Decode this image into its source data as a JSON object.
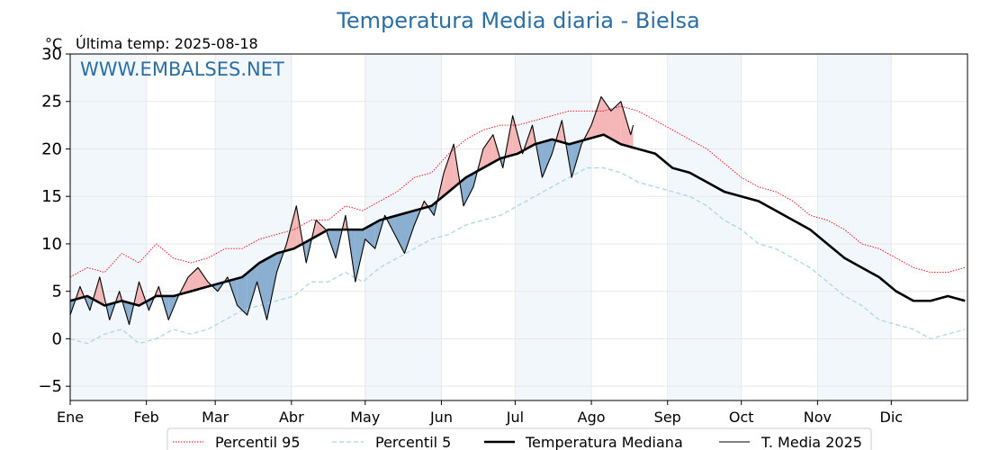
{
  "chart_data": {
    "type": "line",
    "title": "Temperatura Media diaria - Bielsa",
    "unit_label": "°C",
    "last_temp_label": "Última temp: 2025-08-18",
    "watermark": "WWW.EMBALSES.NET",
    "ylim": [
      -6.5,
      30
    ],
    "y_ticks": [
      -5,
      0,
      5,
      10,
      15,
      20,
      25,
      30
    ],
    "x_range_days": [
      1,
      366
    ],
    "month_labels": [
      "Ene",
      "Feb",
      "Mar",
      "Abr",
      "May",
      "Jun",
      "Jul",
      "Ago",
      "Sep",
      "Oct",
      "Nov",
      "Dic"
    ],
    "month_start_days": [
      1,
      32,
      60,
      91,
      121,
      152,
      182,
      213,
      244,
      274,
      305,
      335
    ],
    "shaded_months": [
      "Ene",
      "Mar",
      "May",
      "Jul",
      "Sep",
      "Nov"
    ],
    "legend_position": "bottom",
    "series": [
      {
        "name": "Percentil 95",
        "color": "#e8000b",
        "style": "dotted",
        "x": [
          1,
          8,
          15,
          22,
          29,
          36,
          43,
          50,
          57,
          64,
          71,
          78,
          85,
          92,
          99,
          106,
          113,
          120,
          127,
          134,
          141,
          148,
          155,
          162,
          169,
          176,
          183,
          190,
          197,
          204,
          211,
          218,
          225,
          232,
          239,
          246,
          253,
          260,
          267,
          274,
          281,
          288,
          295,
          302,
          309,
          316,
          323,
          330,
          337,
          344,
          351,
          358,
          365
        ],
        "values": [
          6.5,
          7.5,
          7.0,
          9.0,
          8.0,
          10.0,
          8.5,
          8.0,
          8.5,
          9.5,
          9.5,
          10.5,
          11.0,
          11.5,
          12.5,
          12.5,
          14.0,
          13.5,
          14.5,
          15.5,
          17.0,
          17.5,
          19.5,
          21.0,
          22.0,
          22.5,
          22.5,
          23.0,
          23.5,
          24.0,
          24.0,
          24.0,
          24.5,
          24.0,
          23.0,
          22.0,
          21.0,
          20.0,
          18.5,
          17.0,
          16.0,
          15.5,
          14.5,
          13.0,
          12.5,
          11.5,
          10.0,
          9.5,
          8.5,
          7.5,
          7.0,
          7.0,
          7.5
        ]
      },
      {
        "name": "Percentil 5",
        "color": "#a6d4e2",
        "style": "dashed",
        "x": [
          1,
          8,
          15,
          22,
          29,
          36,
          43,
          50,
          57,
          64,
          71,
          78,
          85,
          92,
          99,
          106,
          113,
          120,
          127,
          134,
          141,
          148,
          155,
          162,
          169,
          176,
          183,
          190,
          197,
          204,
          211,
          218,
          225,
          232,
          239,
          246,
          253,
          260,
          267,
          274,
          281,
          288,
          295,
          302,
          309,
          316,
          323,
          330,
          337,
          344,
          351,
          358,
          365
        ],
        "values": [
          0.0,
          -0.5,
          0.5,
          1.0,
          -0.5,
          0.0,
          1.0,
          0.5,
          1.0,
          2.0,
          3.0,
          3.5,
          4.0,
          4.5,
          6.0,
          6.0,
          7.0,
          6.0,
          7.5,
          8.5,
          9.5,
          10.5,
          11.0,
          12.0,
          12.5,
          13.0,
          14.0,
          15.0,
          16.0,
          17.0,
          18.0,
          18.0,
          17.5,
          16.5,
          16.0,
          15.5,
          15.0,
          14.0,
          12.5,
          11.5,
          10.0,
          9.5,
          8.5,
          7.5,
          6.0,
          4.5,
          3.5,
          2.0,
          1.5,
          1.0,
          0.0,
          0.5,
          1.0
        ]
      },
      {
        "name": "Temperatura Mediana",
        "color": "#000000",
        "style": "thick",
        "x": [
          1,
          8,
          15,
          22,
          29,
          36,
          43,
          50,
          57,
          64,
          71,
          78,
          85,
          92,
          99,
          106,
          113,
          120,
          127,
          134,
          141,
          148,
          155,
          162,
          169,
          176,
          183,
          190,
          197,
          204,
          211,
          218,
          225,
          232,
          239,
          246,
          253,
          260,
          267,
          274,
          281,
          288,
          295,
          302,
          309,
          316,
          323,
          330,
          337,
          344,
          351,
          358,
          365
        ],
        "values": [
          4.0,
          4.5,
          3.5,
          4.0,
          3.5,
          4.5,
          4.5,
          5.0,
          5.5,
          6.0,
          6.5,
          8.0,
          9.0,
          9.5,
          10.5,
          11.5,
          11.5,
          11.5,
          12.5,
          13.0,
          13.5,
          14.0,
          15.5,
          17.0,
          18.0,
          19.0,
          19.5,
          20.5,
          21.0,
          20.5,
          21.0,
          21.5,
          20.5,
          20.0,
          19.5,
          18.0,
          17.5,
          16.5,
          15.5,
          15.0,
          14.5,
          13.5,
          12.5,
          11.5,
          10.0,
          8.5,
          7.5,
          6.5,
          5.0,
          4.0,
          4.0,
          4.5,
          4.0
        ]
      },
      {
        "name": "T. Media 2025",
        "color": "#000000",
        "style": "thin",
        "x": [
          1,
          5,
          9,
          13,
          17,
          21,
          25,
          29,
          33,
          37,
          41,
          45,
          49,
          53,
          57,
          61,
          65,
          69,
          73,
          77,
          81,
          85,
          89,
          93,
          97,
          101,
          105,
          109,
          113,
          117,
          121,
          125,
          129,
          133,
          137,
          141,
          145,
          149,
          153,
          157,
          161,
          165,
          169,
          173,
          177,
          181,
          185,
          189,
          193,
          197,
          201,
          205,
          209,
          213,
          217,
          221,
          225,
          229,
          230
        ],
        "values": [
          2.5,
          5.5,
          3.0,
          6.5,
          2.0,
          5.0,
          1.5,
          6.0,
          3.0,
          5.5,
          2.0,
          4.5,
          6.5,
          7.5,
          6.0,
          5.0,
          6.5,
          3.5,
          2.5,
          6.0,
          2.0,
          7.0,
          10.0,
          14.0,
          8.0,
          12.5,
          11.5,
          8.5,
          13.0,
          6.0,
          10.5,
          9.5,
          13.0,
          11.0,
          9.0,
          12.0,
          14.5,
          13.0,
          17.5,
          20.5,
          14.0,
          16.0,
          20.0,
          21.5,
          18.0,
          23.5,
          19.5,
          22.5,
          17.0,
          19.5,
          23.0,
          17.0,
          20.5,
          22.5,
          25.5,
          24.0,
          25.0,
          21.5,
          22.5
        ]
      }
    ]
  }
}
